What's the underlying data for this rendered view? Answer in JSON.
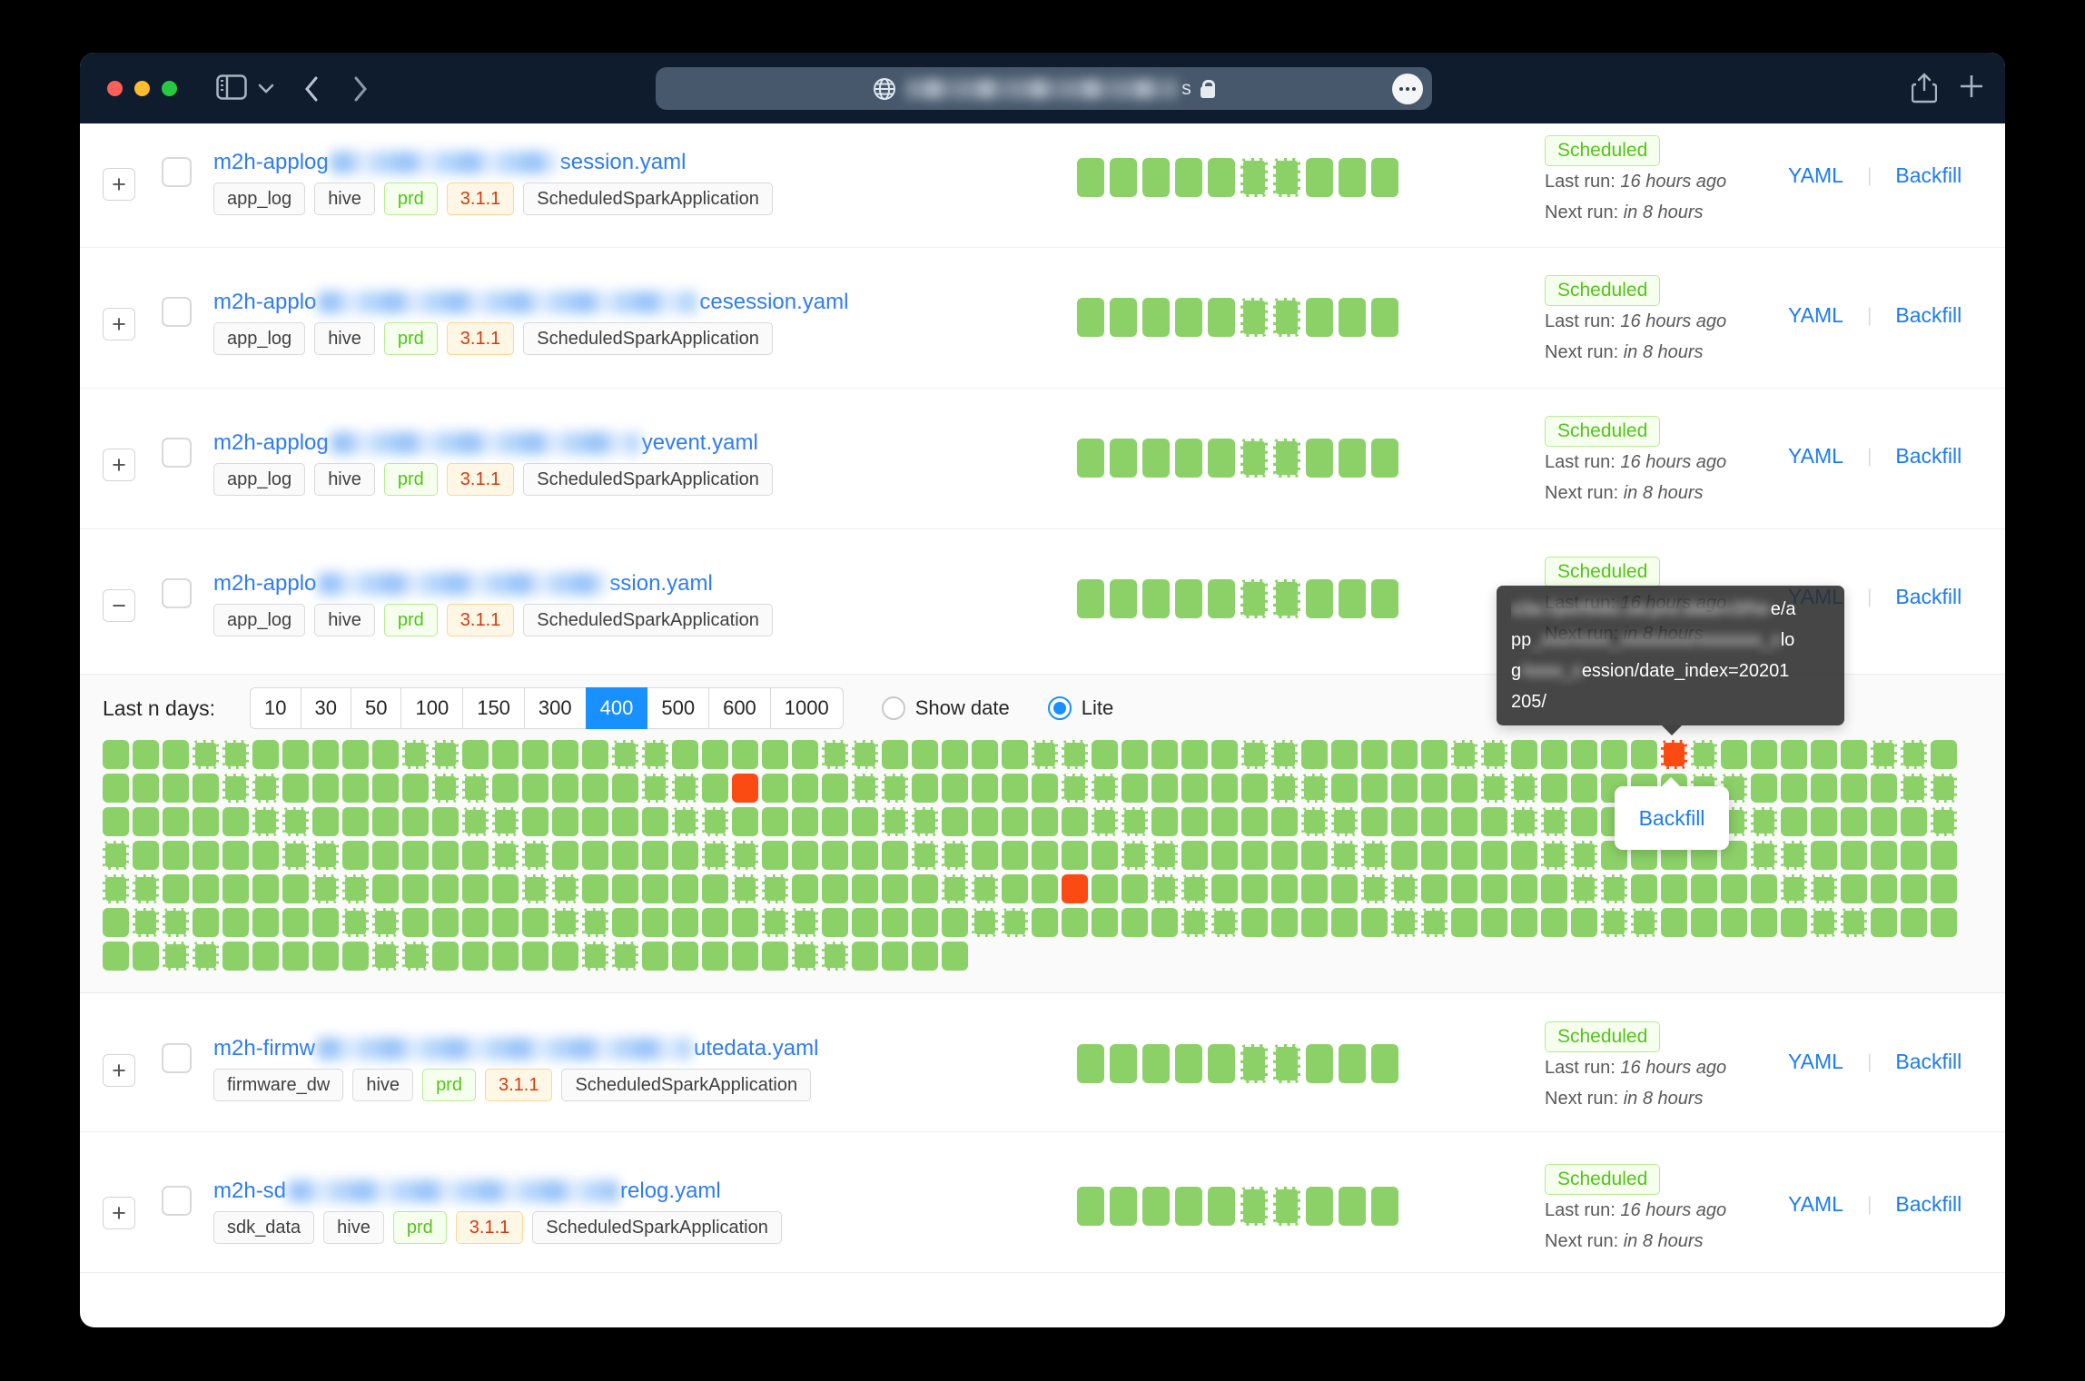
{
  "browser": {
    "traffic_lights": {
      "close": "#ff5f57",
      "minimize": "#febc2e",
      "zoom": "#28c840"
    },
    "icons": [
      "sidebar-icon",
      "chevron-down-icon",
      "back-icon",
      "forward-icon",
      "globe-icon",
      "lock-icon",
      "more-icon",
      "share-icon",
      "new-tab-icon"
    ],
    "url": {
      "masked": true,
      "visible_suffix": "s"
    }
  },
  "filters": {
    "label": "Last n days:",
    "options": [
      "10",
      "30",
      "50",
      "100",
      "150",
      "300",
      "400",
      "500",
      "600",
      "1000"
    ],
    "selected": "400",
    "radios": [
      {
        "label": "Show date",
        "selected": false
      },
      {
        "label": "Lite",
        "selected": true
      }
    ]
  },
  "jobs": [
    {
      "expand": "+",
      "expanded": false,
      "name_prefix": "m2h-applog",
      "name_blur_width": 251,
      "name_suffix": "session.yaml",
      "tags": [
        {
          "label": "app_log",
          "variant": "default"
        },
        {
          "label": "hive",
          "variant": "default"
        },
        {
          "label": "prd",
          "variant": "green"
        },
        {
          "label": "3.1.1",
          "variant": "orange"
        },
        {
          "label": "ScheduledSparkApplication",
          "variant": "default"
        }
      ],
      "status": "Scheduled",
      "last_run_label": "Last run:",
      "last_run": "16 hours ago",
      "next_run_label": "Next run:",
      "next_run": "in 8 hours",
      "actions": {
        "yaml": "YAML",
        "separator": "|",
        "backfill": "Backfill"
      },
      "mini_dashed": [
        5,
        6
      ],
      "mini_count": 10
    },
    {
      "expand": "+",
      "expanded": false,
      "name_prefix": "m2h-applo",
      "name_blur_width": 418,
      "name_suffix": "cesession.yaml",
      "tags": [
        {
          "label": "app_log",
          "variant": "default"
        },
        {
          "label": "hive",
          "variant": "default"
        },
        {
          "label": "prd",
          "variant": "green"
        },
        {
          "label": "3.1.1",
          "variant": "orange"
        },
        {
          "label": "ScheduledSparkApplication",
          "variant": "default"
        }
      ],
      "status": "Scheduled",
      "last_run_label": "Last run:",
      "last_run": "16 hours ago",
      "next_run_label": "Next run:",
      "next_run": "in 8 hours",
      "actions": {
        "yaml": "YAML",
        "separator": "|",
        "backfill": "Backfill"
      },
      "mini_dashed": [
        5,
        6
      ],
      "mini_count": 10
    },
    {
      "expand": "+",
      "expanded": false,
      "name_prefix": "m2h-applog",
      "name_blur_width": 341,
      "name_suffix": "yevent.yaml",
      "tags": [
        {
          "label": "app_log",
          "variant": "default"
        },
        {
          "label": "hive",
          "variant": "default"
        },
        {
          "label": "prd",
          "variant": "green"
        },
        {
          "label": "3.1.1",
          "variant": "orange"
        },
        {
          "label": "ScheduledSparkApplication",
          "variant": "default"
        }
      ],
      "status": "Scheduled",
      "last_run_label": "Last run:",
      "last_run": "16 hours ago",
      "next_run_label": "Next run:",
      "next_run": "in 8 hours",
      "actions": {
        "yaml": "YAML",
        "separator": "|",
        "backfill": "Backfill"
      },
      "mini_dashed": [
        5,
        6
      ],
      "mini_count": 10
    },
    {
      "expand": "−",
      "expanded": true,
      "name_prefix": "m2h-applo",
      "name_blur_width": 319,
      "name_suffix": "ssion.yaml",
      "tags": [
        {
          "label": "app_log",
          "variant": "default"
        },
        {
          "label": "hive",
          "variant": "default"
        },
        {
          "label": "prd",
          "variant": "green"
        },
        {
          "label": "3.1.1",
          "variant": "orange"
        },
        {
          "label": "ScheduledSparkApplication",
          "variant": "default"
        }
      ],
      "status": "Scheduled",
      "last_run_label": "Last run:",
      "last_run": "16 hours ago",
      "next_run_label": "Next run:",
      "next_run": "in 8 hours",
      "actions": {
        "yaml": "YAML",
        "separator": "|",
        "backfill": "Backfill"
      },
      "mini_dashed": [
        5,
        6
      ],
      "mini_count": 10
    },
    {
      "expand": "+",
      "expanded": false,
      "name_prefix": "m2h-firmw",
      "name_blur_width": 413,
      "name_suffix": "utedata.yaml",
      "tags": [
        {
          "label": "firmware_dw",
          "variant": "default"
        },
        {
          "label": "hive",
          "variant": "default"
        },
        {
          "label": "prd",
          "variant": "green"
        },
        {
          "label": "3.1.1",
          "variant": "orange"
        },
        {
          "label": "ScheduledSparkApplication",
          "variant": "default"
        }
      ],
      "status": "Scheduled",
      "last_run_label": "Last run:",
      "last_run": "16 hours ago",
      "next_run_label": "Next run:",
      "next_run": "in 8 hours",
      "actions": {
        "yaml": "YAML",
        "separator": "|",
        "backfill": "Backfill"
      },
      "mini_dashed": [
        5,
        6
      ],
      "mini_count": 10
    },
    {
      "expand": "+",
      "expanded": false,
      "name_prefix": "m2h-sd",
      "name_blur_width": 364,
      "name_suffix": "relog.yaml",
      "tags": [
        {
          "label": "sdk_data",
          "variant": "default"
        },
        {
          "label": "hive",
          "variant": "default"
        },
        {
          "label": "prd",
          "variant": "green"
        },
        {
          "label": "3.1.1",
          "variant": "orange"
        },
        {
          "label": "ScheduledSparkApplication",
          "variant": "default"
        }
      ],
      "status": "Scheduled",
      "last_run_label": "Last run:",
      "last_run": "16 hours ago",
      "next_run_label": "Next run:",
      "next_run": "in 8 hours",
      "actions": {
        "yaml": "YAML",
        "separator": "|",
        "backfill": "Backfill"
      },
      "mini_dashed": [
        5,
        6
      ],
      "mini_count": 10
    }
  ],
  "heatmap": {
    "columns": 62,
    "full_rows": 6,
    "last_row_columns": 29,
    "weekend_offsets": [
      3,
      4
    ],
    "red_cells": [
      [
        0,
        52
      ],
      [
        1,
        21
      ],
      [
        4,
        32
      ]
    ],
    "colors": {
      "green": "#8CD168",
      "red": "#FB4A12"
    }
  },
  "tooltip": {
    "lines": [
      [
        {
          "t": "s3a://portfolio.sw.prd.data/v3/hiv",
          "b": 1
        },
        {
          "t": "e/a",
          "b": 0
        }
      ],
      [
        {
          "t": "pp",
          "b": 0
        },
        {
          "t": "_xxx/xxxx_xxxxxxxx/xxxxxxx_x",
          "b": 1
        },
        {
          "t": "lo",
          "b": 0
        }
      ],
      [
        {
          "t": "g",
          "b": 0
        },
        {
          "t": "/xxxx_s",
          "b": 1
        },
        {
          "t": "ession/date_index=20201",
          "b": 0
        }
      ],
      [
        {
          "t": "205/",
          "b": 0
        }
      ]
    ]
  },
  "backfill_popup": {
    "label": "Backfill"
  }
}
